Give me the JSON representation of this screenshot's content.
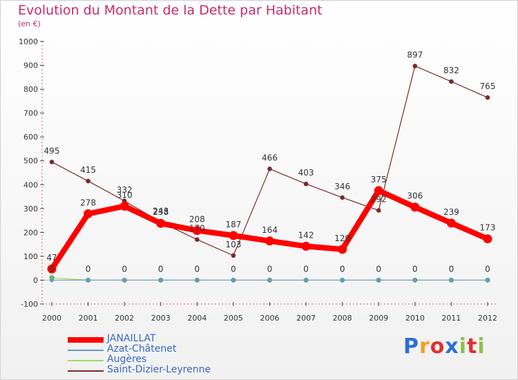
{
  "chart_data": {
    "type": "line",
    "title": "Evolution du Montant de la Dette par Habitant",
    "subtitle": "(en €)",
    "xlabel": "",
    "ylabel": "",
    "ylim": [
      -100,
      1000
    ],
    "y_ticks": [
      -100,
      0,
      100,
      200,
      300,
      400,
      500,
      600,
      700,
      800,
      900,
      1000
    ],
    "categories": [
      "2000",
      "2001",
      "2002",
      "2003",
      "2004",
      "2005",
      "2006",
      "2007",
      "2008",
      "2009",
      "2010",
      "2011",
      "2012"
    ],
    "grid": false,
    "legend_position": "bottom-left",
    "series": [
      {
        "name": "JANAILLAT",
        "color": "#ff0000",
        "values": [
          47,
          278,
          310,
          238,
          208,
          187,
          164,
          142,
          129,
          375,
          306,
          239,
          173
        ]
      },
      {
        "name": "Azat-Châtenet",
        "color": "#6699cc",
        "values": [
          0,
          0,
          0,
          0,
          0,
          0,
          0,
          0,
          0,
          0,
          0,
          0,
          0
        ]
      },
      {
        "name": "Augères",
        "color": "#99dd66",
        "values": [
          10,
          0,
          0,
          0,
          0,
          0,
          0,
          0,
          0,
          0,
          0,
          0,
          0
        ]
      },
      {
        "name": "Saint-Dizier-Leyrenne",
        "color": "#7a2a2a",
        "values": [
          495,
          415,
          332,
          243,
          170,
          103,
          466,
          403,
          346,
          292,
          897,
          832,
          765
        ]
      }
    ],
    "data_labels": {
      "JANAILLAT": [
        "47",
        "278",
        "310",
        "238",
        "208",
        "187",
        "164",
        "142",
        "129",
        "375",
        "306",
        "239",
        "173"
      ],
      "Azat-Châtenet": [
        "0",
        "0",
        "0",
        "0",
        "0",
        "0",
        "0",
        "0",
        "0",
        "0",
        "0",
        "0",
        "0"
      ],
      "Saint-Dizier-Leyrenne": [
        "495",
        "415",
        "332",
        "243",
        "170",
        "103",
        "466",
        "403",
        "346",
        "292",
        "897",
        "832",
        "765"
      ]
    }
  },
  "logo": {
    "letters": [
      "P",
      "r",
      "o",
      "x",
      "i",
      "t",
      "i"
    ],
    "colors": [
      "#2a6fd6",
      "#f0a020",
      "#e03030",
      "#2a6fd6",
      "#8bc34a",
      "#e03030",
      "#8bc34a"
    ]
  }
}
